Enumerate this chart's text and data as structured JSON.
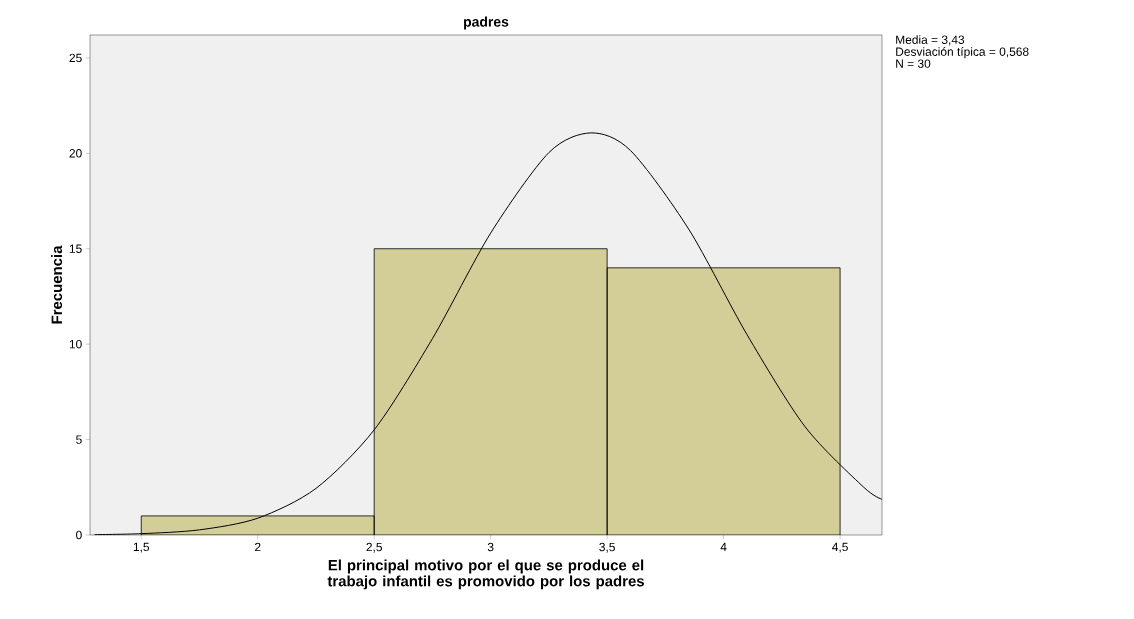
{
  "chart_data": {
    "type": "histogram",
    "title": "padres",
    "xlabel": "El principal motivo por el que se produce el trabajo infantil es promovido por los padres",
    "ylabel": "Frecuencia",
    "bins": [
      1.5,
      2.5,
      3.5,
      4.5
    ],
    "values": [
      1,
      15,
      14
    ],
    "color": "#d3ce97",
    "series": [
      {
        "type": "line",
        "color": "#000000",
        "x": [
          1.3,
          1.5,
          1.75,
          2.0,
          2.25,
          2.5,
          2.75,
          3.0,
          3.25,
          3.43,
          3.6,
          3.85,
          4.1,
          4.35,
          4.6,
          4.68
        ],
        "values": [
          0.02,
          0.07,
          0.27,
          0.88,
          2.44,
          5.51,
          10.29,
          15.82,
          20.04,
          21.07,
          20.15,
          16.03,
          10.51,
          5.67,
          2.52,
          1.87
        ]
      }
    ],
    "xlim": [
      1.28,
      4.68
    ],
    "ylim": [
      0,
      26.2
    ],
    "xticks": [
      {
        "value": 1.5,
        "label": "1,5"
      },
      2,
      {
        "value": 2.5,
        "label": "2,5"
      },
      3,
      {
        "value": 3.5,
        "label": "3,5"
      },
      4,
      {
        "value": 4.5,
        "label": "4,5"
      }
    ],
    "yticks": [
      0,
      5,
      10,
      15,
      20,
      25
    ],
    "annotations": [
      "Media = 3,43",
      "Desviación típica = 0,568",
      "N = 30"
    ]
  }
}
